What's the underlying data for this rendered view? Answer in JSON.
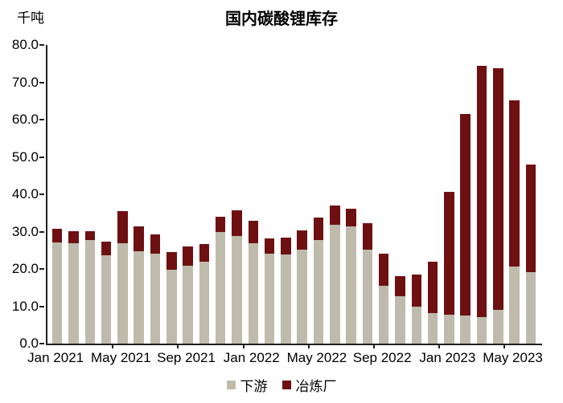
{
  "header": {
    "unit_label": "千吨",
    "title": "国内碳酸锂库存"
  },
  "colors": {
    "downstream": "#BEBBAC",
    "smelter": "#6E1012",
    "axis": "#1f1f1f",
    "text": "#000000"
  },
  "legend": {
    "items": [
      {
        "label": "下游",
        "color": "#BEBBAC"
      },
      {
        "label": "冶炼厂",
        "color": "#6E1012"
      }
    ]
  },
  "chart_data": {
    "type": "bar",
    "stacked": true,
    "title": "国内碳酸锂库存",
    "ylabel": "千吨",
    "xlabel": "",
    "ylim": [
      0,
      80
    ],
    "ytick_step": 10,
    "yticks": [
      "0.0",
      "10.0",
      "20.0",
      "30.0",
      "40.0",
      "50.0",
      "60.0",
      "70.0",
      "80.0"
    ],
    "grid": false,
    "legend_position": "bottom",
    "x": [
      "Jan 2021",
      "Feb 2021",
      "Mar 2021",
      "Apr 2021",
      "May 2021",
      "Jun 2021",
      "Jul 2021",
      "Aug 2021",
      "Sep 2021",
      "Oct 2021",
      "Nov 2021",
      "Dec 2021",
      "Jan 2022",
      "Feb 2022",
      "Mar 2022",
      "Apr 2022",
      "May 2022",
      "Jun 2022",
      "Jul 2022",
      "Aug 2022",
      "Sep 2022",
      "Oct 2022",
      "Nov 2022",
      "Dec 2022",
      "Jan 2023",
      "Feb 2023",
      "Mar 2023",
      "Apr 2023",
      "May 2023",
      "Jun 2023"
    ],
    "x_tick_labels": [
      "Jan 2021",
      "May 2021",
      "Sep 2021",
      "Jan 2022",
      "May 2022",
      "Sep 2022",
      "Jan 2023",
      "May 2023"
    ],
    "x_label_every": 4,
    "series": [
      {
        "name": "下游",
        "color": "#BEBBAC",
        "values": [
          27.0,
          26.8,
          27.7,
          23.7,
          26.9,
          24.7,
          24.0,
          19.8,
          20.9,
          22.0,
          30.0,
          28.8,
          26.8,
          24.0,
          23.8,
          25.1,
          27.8,
          31.9,
          31.5,
          25.2,
          15.5,
          12.6,
          9.8,
          8.2,
          7.8,
          7.6,
          7.1,
          9.0,
          20.7,
          19.1
        ]
      },
      {
        "name": "冶炼厂",
        "color": "#6E1012",
        "values": [
          3.8,
          3.4,
          2.4,
          3.6,
          8.6,
          6.8,
          5.2,
          4.7,
          5.1,
          4.7,
          4.0,
          7.0,
          6.1,
          4.1,
          4.7,
          5.2,
          5.9,
          5.2,
          4.6,
          7.1,
          8.5,
          5.4,
          8.6,
          13.7,
          32.9,
          53.9,
          67.4,
          64.8,
          44.4,
          28.9
        ]
      }
    ],
    "totals": [
      30.8,
      30.2,
      30.1,
      27.3,
      35.5,
      31.5,
      29.2,
      24.5,
      26.0,
      26.7,
      34.0,
      35.8,
      32.9,
      28.1,
      28.5,
      30.3,
      33.7,
      37.1,
      36.1,
      32.3,
      24.0,
      18.0,
      18.4,
      21.9,
      40.7,
      61.5,
      74.5,
      73.8,
      65.1,
      48.0
    ]
  }
}
